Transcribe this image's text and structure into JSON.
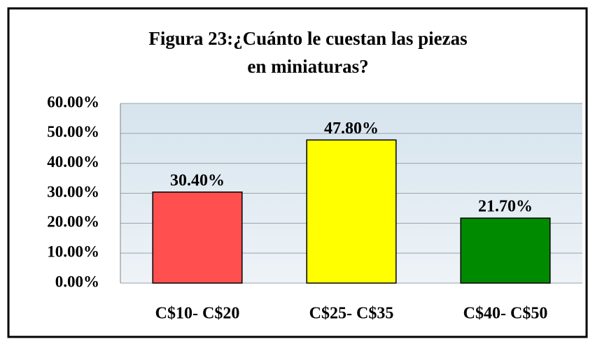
{
  "chart_data": {
    "type": "bar",
    "title": [
      "Figura 23:¿Cuánto le cuestan las piezas",
      "en miniaturas?"
    ],
    "categories": [
      "C$10- C$20",
      "C$25- C$35",
      "C$40- C$50"
    ],
    "values": [
      30.4,
      47.8,
      21.7
    ],
    "value_labels": [
      "30.40%",
      "47.80%",
      "21.70%"
    ],
    "colors": [
      "#ff4f4f",
      "#ffff00",
      "#008a00"
    ],
    "ylim": [
      0,
      60
    ],
    "yticks": [
      {
        "value": 0,
        "label": "0.00%"
      },
      {
        "value": 10,
        "label": "10.00%"
      },
      {
        "value": 20,
        "label": "20.00%"
      },
      {
        "value": 30,
        "label": "30.00%"
      },
      {
        "value": 40,
        "label": "40.00%"
      },
      {
        "value": 50,
        "label": "50.00%"
      },
      {
        "value": 60,
        "label": "60.00%"
      }
    ],
    "grid": true
  }
}
